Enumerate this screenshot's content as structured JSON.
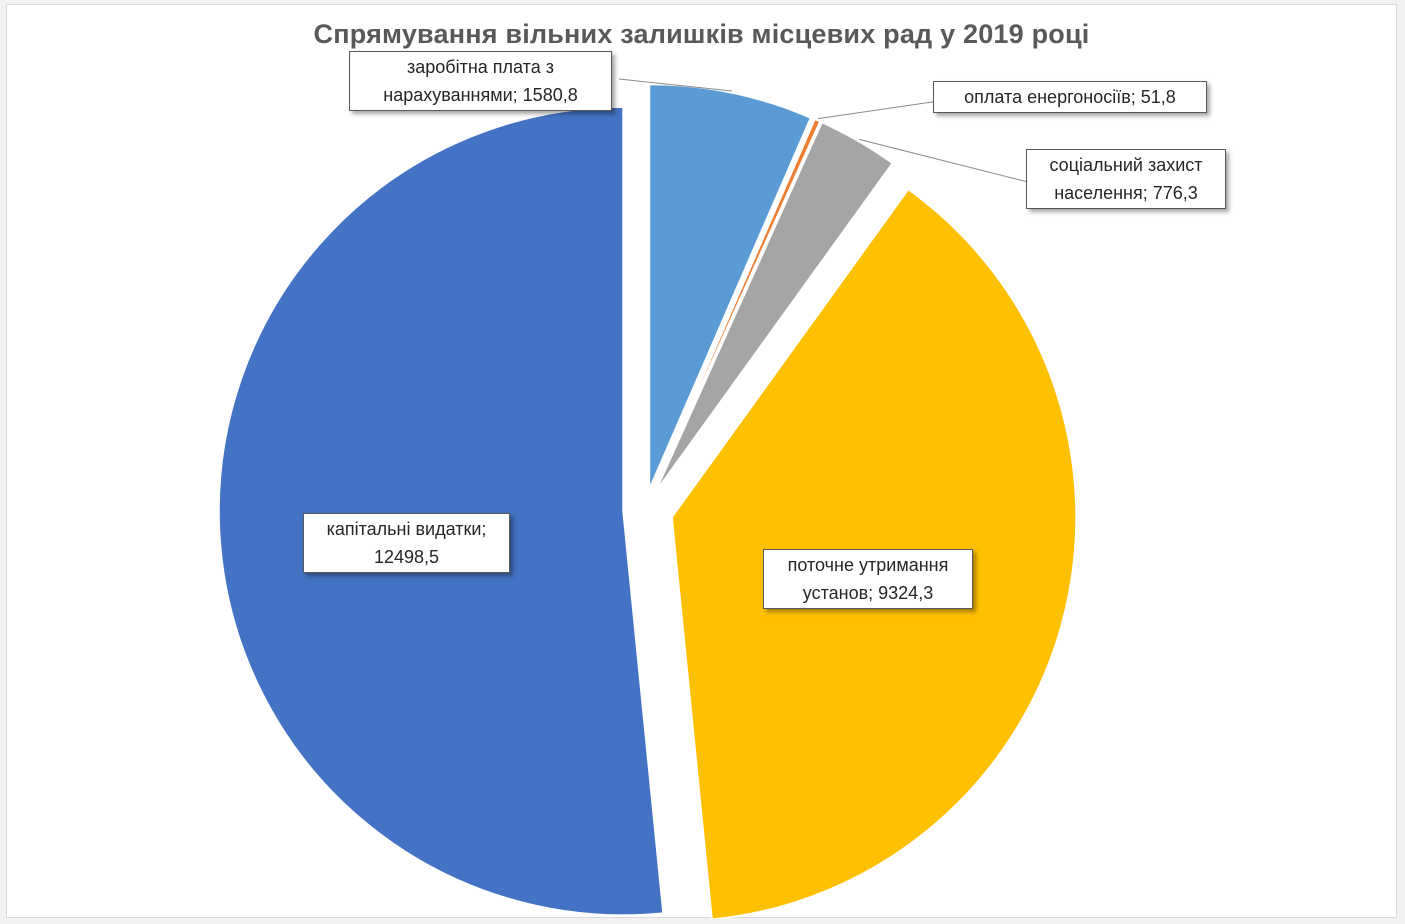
{
  "chart_data": {
    "type": "pie",
    "title": "Спрямування вільних залишків місцевих рад у 2019 році",
    "slices": [
      {
        "label": "заробітна плата з нарахуваннями",
        "value": 1580.8,
        "color": "#5b9bd5",
        "label_lines": [
          "заробітна плата з",
          "нарахуваннями; 1580,8"
        ]
      },
      {
        "label": "оплата енергоносіїв",
        "value": 51.8,
        "color": "#ed7d31",
        "label_lines": [
          "оплата енергоносіїв; 51,8"
        ]
      },
      {
        "label": "соціальний захист населення",
        "value": 776.3,
        "color": "#a5a5a5",
        "label_lines": [
          "соціальний захист",
          "населення; 776,3"
        ]
      },
      {
        "label": "поточне утримання установ",
        "value": 9324.3,
        "color": "#ffc000",
        "label_lines": [
          "поточне утримання",
          "установ; 9324,3"
        ]
      },
      {
        "label": "капітальні видатки",
        "value": 12498.5,
        "color": "#4472c4",
        "label_lines": [
          "капітальні видатки;",
          "12498,5"
        ]
      }
    ],
    "legend": "none",
    "exploded": true
  }
}
